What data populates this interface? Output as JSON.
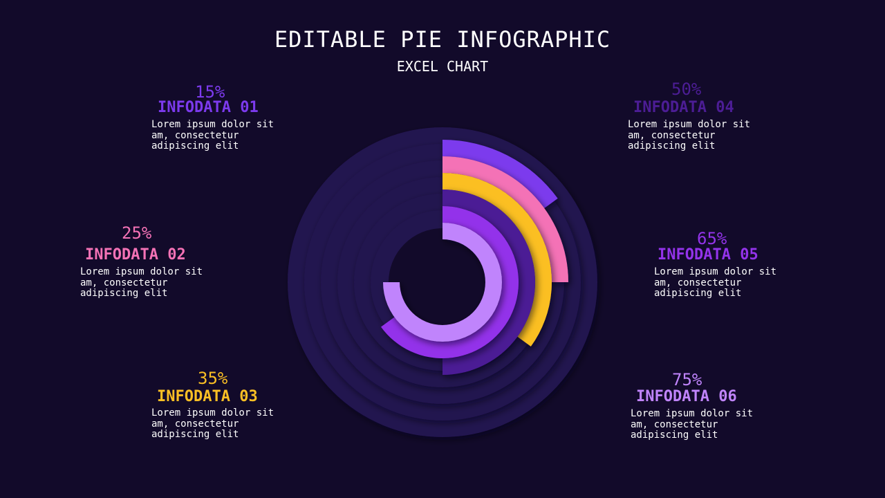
{
  "header": {
    "title": "EDITABLE PIE INFOGRAPHIC",
    "subtitle": "EXCEL CHART"
  },
  "chart_data": {
    "type": "pie",
    "title": "EDITABLE PIE INFOGRAPHIC",
    "subtitle": "EXCEL CHART",
    "series": [
      {
        "name": "INFODATA 01",
        "value": 15,
        "percent_label": "15%",
        "color": "#7c3aed",
        "description": "Lorem ipsum dolor sit am, consectetur adipiscing elit"
      },
      {
        "name": "INFODATA 02",
        "value": 25,
        "percent_label": "25%",
        "color": "#f472b6",
        "description": "Lorem ipsum dolor sit am, consectetur adipiscing elit"
      },
      {
        "name": "INFODATA 03",
        "value": 35,
        "percent_label": "35%",
        "color": "#fbbf24",
        "description": "Lorem ipsum dolor sit am, consectetur adipiscing elit"
      },
      {
        "name": "INFODATA 04",
        "value": 50,
        "percent_label": "50%",
        "color": "#4c1d95",
        "description": "Lorem ipsum dolor sit am, consectetur adipiscing elit"
      },
      {
        "name": "INFODATA 05",
        "value": 65,
        "percent_label": "65%",
        "color": "#9333ea",
        "description": "Lorem ipsum dolor sit am, consectetur adipiscing elit"
      },
      {
        "name": "INFODATA 06",
        "value": 75,
        "percent_label": "75%",
        "color": "#c084fc",
        "description": "Lorem ipsum dolor sit am, consectetur adipiscing elit"
      }
    ],
    "track_color": "#22134f",
    "background_color": "#120a2a"
  }
}
